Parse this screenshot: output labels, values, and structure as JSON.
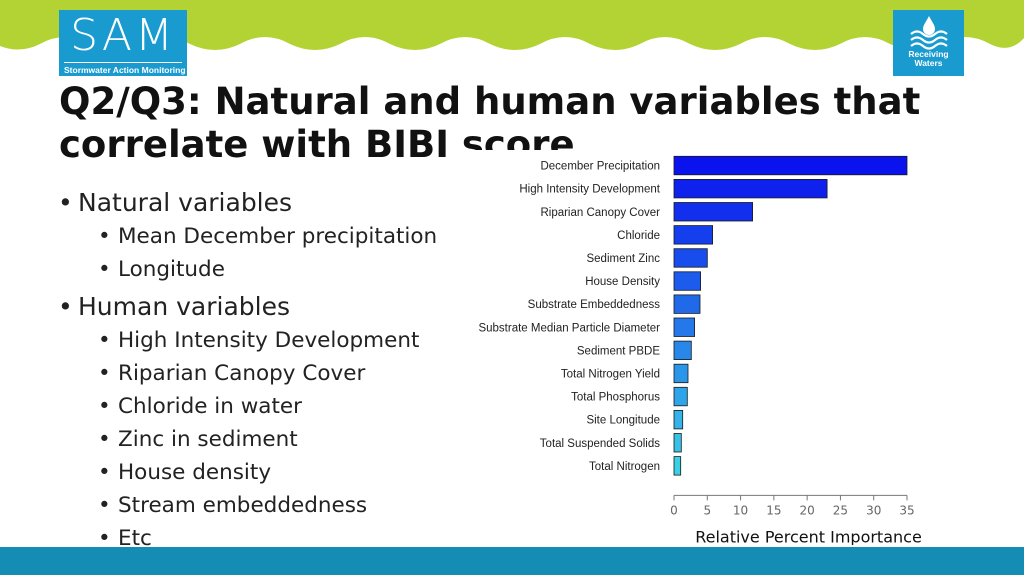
{
  "header": {
    "sam_logo": {
      "word": "SAM",
      "subtitle": "Stormwater Action Monitoring"
    },
    "rw_logo": {
      "line1": "Receiving",
      "line2": "Waters",
      "icon": "water-drop-waves-icon"
    }
  },
  "slide": {
    "title": "Q2/Q3: Natural and human variables that correlate with BIBI score",
    "bullets": [
      {
        "label": "Natural variables",
        "items": [
          "Mean December precipitation",
          "Longitude"
        ]
      },
      {
        "label": "Human variables",
        "items": [
          "High Intensity Development",
          "Riparian Canopy Cover",
          "Chloride in water",
          "Zinc in sediment",
          "House density",
          "Stream embeddedness",
          "Etc"
        ]
      }
    ]
  },
  "colors": {
    "top_band": "#b3d334",
    "bottom_bar": "#148cb4",
    "logo_blue": "#1a9bd0",
    "bar_start": "#0a12ee",
    "bar_end": "#3ad0e6"
  },
  "chart_data": {
    "type": "bar",
    "orientation": "horizontal",
    "categories": [
      "December Precipitation",
      "High Intensity Development",
      "Riparian Canopy Cover",
      "Chloride",
      "Sediment Zinc",
      "House Density",
      "Substrate Embeddedness",
      "Substrate Median Particle Diameter",
      "Sediment PBDE",
      "Total Nitrogen Yield",
      "Total Phosphorus",
      "Site Longitude",
      "Total Suspended Solids",
      "Total Nitrogen"
    ],
    "values": [
      35.0,
      23.0,
      11.8,
      5.8,
      5.0,
      4.0,
      3.9,
      3.1,
      2.6,
      2.1,
      2.0,
      1.3,
      1.1,
      1.0
    ],
    "xlabel": "Relative Percent Importance",
    "xticks": [
      0,
      5,
      10,
      15,
      20,
      25,
      30,
      35
    ],
    "xlim": [
      0,
      35
    ],
    "grid": false
  }
}
